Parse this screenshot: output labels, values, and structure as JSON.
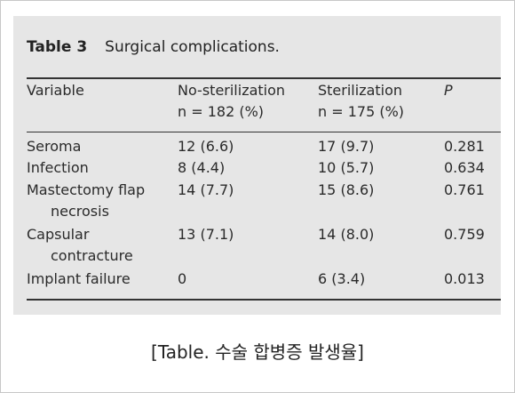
{
  "table": {
    "number": "Table 3",
    "title": "Surgical complications.",
    "headers": {
      "variable": "Variable",
      "no_steril": "No-sterilization",
      "no_steril_n": "n = 182 (%)",
      "steril": "Sterilization",
      "steril_n": "n = 175 (%)",
      "p": "P"
    },
    "rows": [
      {
        "variable": "Seroma",
        "variable_cont": "",
        "no_steril": "12 (6.6)",
        "steril": "17 (9.7)",
        "p": "0.281"
      },
      {
        "variable": "Infection",
        "variable_cont": "",
        "no_steril": "8 (4.4)",
        "steril": "10 (5.7)",
        "p": "0.634"
      },
      {
        "variable": "Mastectomy flap",
        "variable_cont": "necrosis",
        "no_steril": "14 (7.7)",
        "steril": "15 (8.6)",
        "p": "0.761"
      },
      {
        "variable": "Capsular",
        "variable_cont": "contracture",
        "no_steril": "13 (7.1)",
        "steril": "14 (8.0)",
        "p": "0.759"
      },
      {
        "variable": "Implant failure",
        "variable_cont": "",
        "no_steril": "0",
        "steril": "6 (3.4)",
        "p": "0.013"
      }
    ]
  },
  "caption": "[Table. 수술 합병증 발생율]"
}
